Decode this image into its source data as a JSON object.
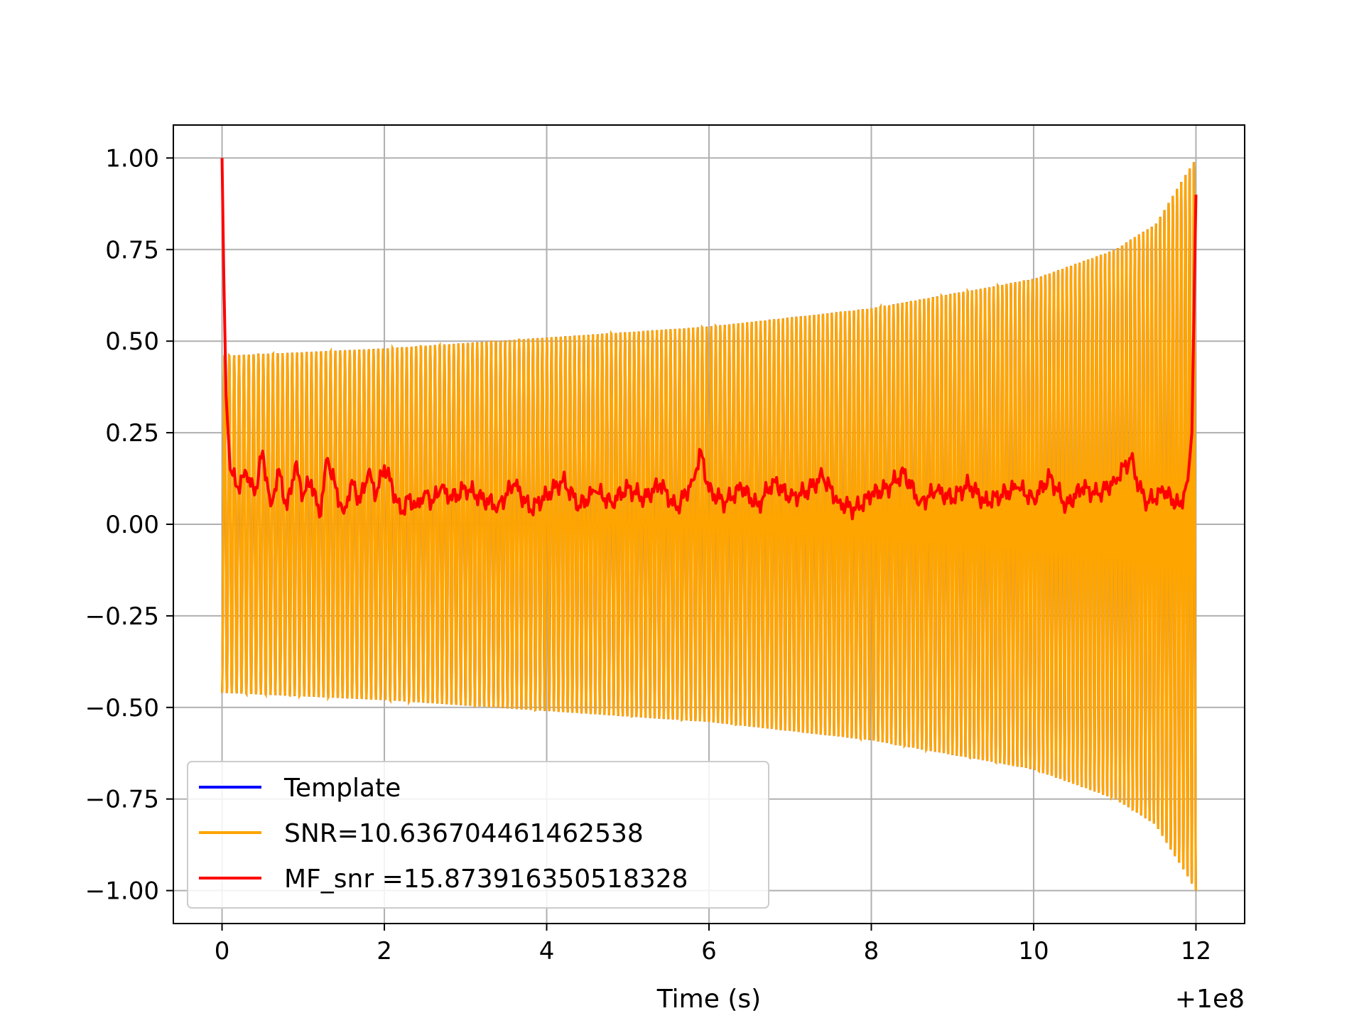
{
  "chart_data": {
    "type": "line",
    "title": "",
    "xlabel": "Time (s)",
    "ylabel": "",
    "x_offset_label": "+1e8",
    "xlim": [
      -0.6,
      12.6
    ],
    "ylim": [
      -1.09,
      1.09
    ],
    "xticks": [
      0,
      2,
      4,
      6,
      8,
      10,
      12
    ],
    "xtick_labels": [
      "0",
      "2",
      "4",
      "6",
      "8",
      "10",
      "12"
    ],
    "yticks": [
      1.0,
      0.75,
      0.5,
      0.25,
      0.0,
      -0.25,
      -0.5,
      -0.75,
      -1.0
    ],
    "ytick_labels": [
      "1.00",
      "0.75",
      "0.50",
      "0.25",
      "0.00",
      "−0.25",
      "−0.50",
      "−0.75",
      "−1.00"
    ],
    "grid": true,
    "legend_position": "lower-left",
    "series": [
      {
        "name": "Template",
        "color": "#0000ff",
        "description_x_range": [
          0,
          12
        ],
        "envelope": {
          "x": [
            0,
            2,
            4,
            6,
            8,
            10,
            11,
            11.5,
            12
          ],
          "amplitude": [
            0.46,
            0.48,
            0.51,
            0.54,
            0.59,
            0.67,
            0.75,
            0.82,
            1.0
          ]
        }
      },
      {
        "name": "SNR=10.636704461462538",
        "color": "#ffa500",
        "description_x_range": [
          0,
          12
        ],
        "cycles": 200,
        "envelope": {
          "x": [
            0,
            2,
            4,
            6,
            8,
            10,
            11,
            11.5,
            12
          ],
          "amplitude": [
            0.46,
            0.48,
            0.51,
            0.54,
            0.59,
            0.67,
            0.75,
            0.82,
            1.0
          ]
        }
      },
      {
        "name": "MF_snr =15.873916350518328",
        "color": "#ff0000",
        "x": [
          0.0,
          0.02,
          0.05,
          0.1,
          0.2,
          0.3,
          0.4,
          0.5,
          0.6,
          0.7,
          0.8,
          0.9,
          1.0,
          1.1,
          1.2,
          1.3,
          1.4,
          1.5,
          1.6,
          1.7,
          1.8,
          1.9,
          2.0,
          2.1,
          2.2,
          2.3,
          2.4,
          2.5,
          2.6,
          2.7,
          2.8,
          2.9,
          3.0,
          3.2,
          3.4,
          3.6,
          3.8,
          4.0,
          4.2,
          4.4,
          4.6,
          4.8,
          5.0,
          5.2,
          5.4,
          5.6,
          5.8,
          5.9,
          6.0,
          6.2,
          6.4,
          6.6,
          6.8,
          7.0,
          7.2,
          7.4,
          7.6,
          7.8,
          8.0,
          8.2,
          8.4,
          8.6,
          8.8,
          9.0,
          9.2,
          9.4,
          9.6,
          9.8,
          10.0,
          10.2,
          10.4,
          10.6,
          10.8,
          11.0,
          11.2,
          11.3,
          11.4,
          11.6,
          11.8,
          11.9,
          11.95,
          12.0
        ],
        "y": [
          1.0,
          0.7,
          0.35,
          0.15,
          0.1,
          0.14,
          0.08,
          0.2,
          0.05,
          0.15,
          0.04,
          0.16,
          0.08,
          0.12,
          0.02,
          0.18,
          0.1,
          0.03,
          0.12,
          0.06,
          0.14,
          0.08,
          0.16,
          0.1,
          0.03,
          0.07,
          0.05,
          0.09,
          0.06,
          0.1,
          0.07,
          0.08,
          0.1,
          0.07,
          0.05,
          0.11,
          0.04,
          0.08,
          0.12,
          0.05,
          0.09,
          0.06,
          0.1,
          0.07,
          0.11,
          0.04,
          0.12,
          0.2,
          0.09,
          0.06,
          0.1,
          0.05,
          0.12,
          0.07,
          0.09,
          0.13,
          0.06,
          0.04,
          0.08,
          0.1,
          0.14,
          0.06,
          0.09,
          0.07,
          0.11,
          0.06,
          0.08,
          0.1,
          0.07,
          0.13,
          0.05,
          0.1,
          0.08,
          0.12,
          0.18,
          0.1,
          0.06,
          0.09,
          0.05,
          0.12,
          0.25,
          0.9
        ]
      }
    ]
  }
}
